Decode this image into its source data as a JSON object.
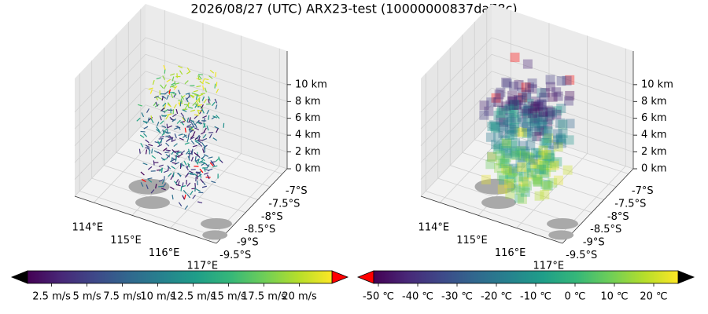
{
  "title": "2026/08/27 (UTC) ARX23-test (10000000837da78c)",
  "chart_data": [
    {
      "type": "quiver3d",
      "xlim": [
        113.5,
        117.2
      ],
      "xticks": [
        {
          "value": 114,
          "label": "114°E"
        },
        {
          "value": 115,
          "label": "115°E"
        },
        {
          "value": 116,
          "label": "116°E"
        },
        {
          "value": 117,
          "label": "117°E"
        }
      ],
      "ylim": [
        -9.7,
        -6.8
      ],
      "yticks": [
        {
          "value": -9.5,
          "label": "-9.5°S"
        },
        {
          "value": -9,
          "label": "-9°S"
        },
        {
          "value": -8.5,
          "label": "-8.5°S"
        },
        {
          "value": -8,
          "label": "-8°S"
        },
        {
          "value": -7.5,
          "label": "-7.5°S"
        },
        {
          "value": -7,
          "label": "-7°S"
        }
      ],
      "zlim": [
        0,
        14
      ],
      "zticks": [
        {
          "value": 0,
          "label": "0 km"
        },
        {
          "value": 2,
          "label": "2 km"
        },
        {
          "value": 4,
          "label": "4 km"
        },
        {
          "value": 6,
          "label": "6 km"
        },
        {
          "value": 8,
          "label": "8 km"
        },
        {
          "value": 10,
          "label": "10 km"
        }
      ],
      "colorbar": {
        "cmap": "viridis",
        "extend_colors": [
          "#000000",
          "#ff0000"
        ],
        "lim": [
          0.8,
          22.3
        ],
        "ticks": [
          {
            "value": 2.5,
            "label": "2.5 m/s"
          },
          {
            "value": 5,
            "label": "5 m/s"
          },
          {
            "value": 7.5,
            "label": "7.5 m/s"
          },
          {
            "value": 10,
            "label": "10 m/s"
          },
          {
            "value": 12.5,
            "label": "12.5 m/s"
          },
          {
            "value": 15,
            "label": "15 m/s"
          },
          {
            "value": 17.5,
            "label": "17.5 m/s"
          },
          {
            "value": 20,
            "label": "20 m/s"
          }
        ]
      }
    },
    {
      "type": "voxel3d",
      "xlim": [
        113.5,
        117.2
      ],
      "xticks": [
        {
          "value": 114,
          "label": "114°E"
        },
        {
          "value": 115,
          "label": "115°E"
        },
        {
          "value": 116,
          "label": "116°E"
        },
        {
          "value": 117,
          "label": "117°E"
        }
      ],
      "ylim": [
        -9.7,
        -6.8
      ],
      "yticks": [
        {
          "value": -9.5,
          "label": "-9.5°S"
        },
        {
          "value": -9,
          "label": "-9°S"
        },
        {
          "value": -8.5,
          "label": "-8.5°S"
        },
        {
          "value": -8,
          "label": "-8°S"
        },
        {
          "value": -7.5,
          "label": "-7.5°S"
        },
        {
          "value": -7,
          "label": "-7°S"
        }
      ],
      "zlim": [
        0,
        14
      ],
      "zticks": [
        {
          "value": 0,
          "label": "0 km"
        },
        {
          "value": 2,
          "label": "2 km"
        },
        {
          "value": 4,
          "label": "4 km"
        },
        {
          "value": 6,
          "label": "6 km"
        },
        {
          "value": 8,
          "label": "8 km"
        },
        {
          "value": 10,
          "label": "10 km"
        }
      ],
      "colorbar": {
        "cmap": "viridis",
        "extend_colors": [
          "#ff0000",
          "#000000"
        ],
        "lim": [
          -51.2,
          26.2
        ],
        "ticks": [
          {
            "value": -50,
            "label": "-50 ℃"
          },
          {
            "value": -40,
            "label": "-40 ℃"
          },
          {
            "value": -30,
            "label": "-30 ℃"
          },
          {
            "value": -20,
            "label": "-20 ℃"
          },
          {
            "value": -10,
            "label": "-10 ℃"
          },
          {
            "value": 0,
            "label": "0 ℃"
          },
          {
            "value": 10,
            "label": "10 ℃"
          },
          {
            "value": 20,
            "label": "20 ℃"
          }
        ]
      }
    }
  ]
}
